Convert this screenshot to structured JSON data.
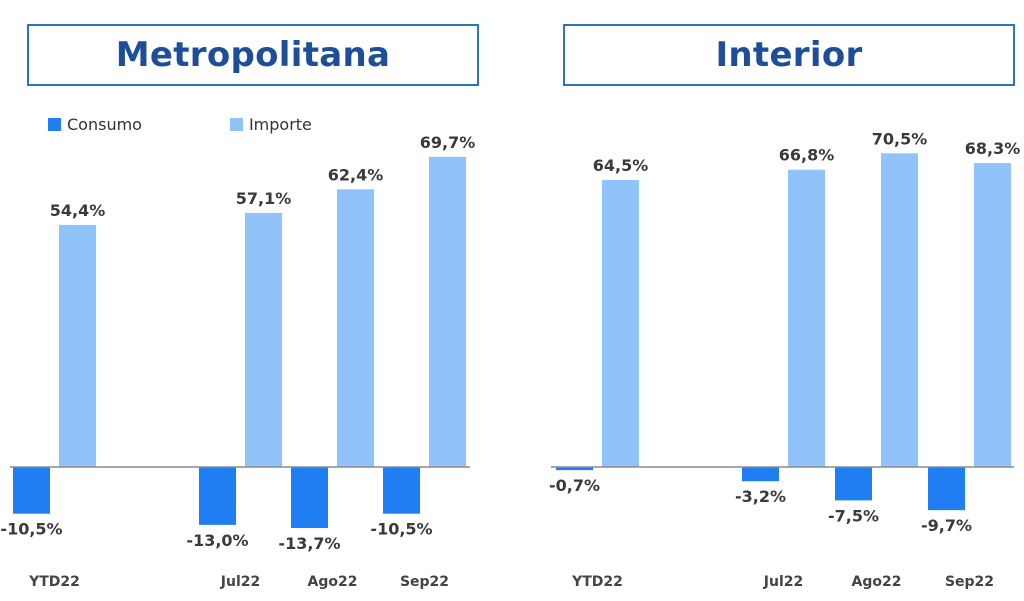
{
  "legend": {
    "consumo": "Consumo",
    "importe": "Importe"
  },
  "colors": {
    "consumo": "#1f7ef2",
    "importe": "#91c3fb",
    "title_text": "#1f4e99",
    "title_border": "#2e75b6",
    "axis": "#8c8c8c",
    "label": "#3a3a3a"
  },
  "chart_data": [
    {
      "type": "bar",
      "title": "Metropolitana",
      "categories": [
        "YTD22",
        "Jul22",
        "Ago22",
        "Sep22"
      ],
      "series": [
        {
          "name": "Consumo",
          "values": [
            -10.5,
            -13.0,
            -13.7,
            -10.5
          ],
          "labels": [
            "-10,5%",
            "-13,0%",
            "-13,7%",
            "-10,5%"
          ]
        },
        {
          "name": "Importe",
          "values": [
            54.4,
            57.1,
            62.4,
            69.7
          ],
          "labels": [
            "54,4%",
            "57,1%",
            "62,4%",
            "69,7%"
          ]
        }
      ],
      "ylim": [
        -16,
        75
      ],
      "legend": "top-left",
      "grid": false
    },
    {
      "type": "bar",
      "title": "Interior",
      "categories": [
        "YTD22",
        "Jul22",
        "Ago22",
        "Sep22"
      ],
      "series": [
        {
          "name": "Consumo",
          "values": [
            -0.7,
            -3.2,
            -7.5,
            -9.7
          ],
          "labels": [
            "-0,7%",
            "-3,2%",
            "-7,5%",
            "-9,7%"
          ]
        },
        {
          "name": "Importe",
          "values": [
            64.5,
            66.8,
            70.5,
            68.3
          ],
          "labels": [
            "64,5%",
            "66,8%",
            "70,5%",
            "68,3%"
          ]
        }
      ],
      "ylim": [
        -16,
        75
      ],
      "legend": "none",
      "grid": false
    }
  ]
}
